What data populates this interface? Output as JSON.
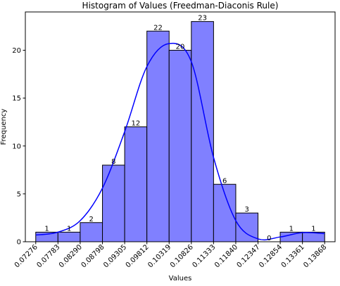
{
  "chart_data": {
    "type": "bar",
    "title": "Histogram of Values (Freedman-Diaconis Rule)",
    "xlabel": "Values",
    "ylabel": "Frequency",
    "bin_edges": [
      0.07276,
      0.07783,
      0.0829,
      0.08798,
      0.09305,
      0.09812,
      0.10319,
      0.10826,
      0.11333,
      0.1184,
      0.12347,
      0.12854,
      0.13361,
      0.13868
    ],
    "tick_labels": [
      "0.07276",
      "0.07783",
      "0.08290",
      "0.08798",
      "0.09305",
      "0.09812",
      "0.10319",
      "0.10826",
      "0.11333",
      "0.11840",
      "0.12347",
      "0.12854",
      "0.13361",
      "0.13868"
    ],
    "counts": [
      1,
      1,
      2,
      8,
      12,
      22,
      20,
      23,
      6,
      3,
      0,
      1,
      1
    ],
    "count_labels": [
      "1",
      "1",
      "2",
      "8",
      "12",
      "22",
      "20",
      "23",
      "6",
      "3",
      "0",
      "1",
      "1"
    ],
    "ylim": [
      0,
      24
    ],
    "y_ticks": [
      0,
      5,
      10,
      15,
      20
    ],
    "y_tick_labels": [
      "0",
      "5",
      "10",
      "15",
      "20"
    ],
    "kde_curve": {
      "x": [
        0.07276,
        0.07783,
        0.0829,
        0.08798,
        0.09305,
        0.09812,
        0.10319,
        0.10826,
        0.11333,
        0.1184,
        0.12347,
        0.12854,
        0.13361,
        0.13868
      ],
      "y": [
        0.7,
        1.0,
        2.2,
        5.6,
        11.5,
        18.3,
        20.7,
        18.8,
        8.8,
        2.2,
        0.3,
        0.5,
        0.95,
        0.85
      ]
    },
    "grid": false,
    "legend": "none",
    "colors": {
      "bar_fill": "#8080ff",
      "bar_edge": "#000000",
      "kde_line": "#0000ff"
    }
  }
}
